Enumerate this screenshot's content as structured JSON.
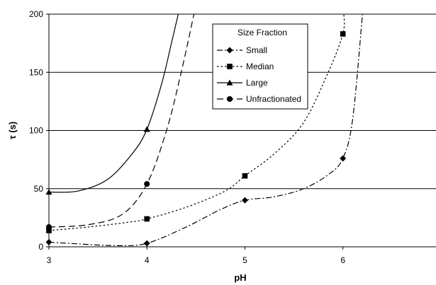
{
  "chart_data": {
    "type": "line",
    "xlabel": "pH",
    "ylabel": "τ (s)",
    "xlim": [
      3,
      6.95
    ],
    "ylim": [
      0,
      200
    ],
    "x_ticks": [
      "3",
      "4",
      "5",
      "6"
    ],
    "y_ticks": [
      "0",
      "50",
      "100",
      "150",
      "200"
    ],
    "grid": "horizontal",
    "legend": {
      "title": "Size Fraction",
      "placement": "top-center"
    },
    "series": [
      {
        "name": "Small",
        "marker": "diamond",
        "dash": "dash-dot",
        "points": [
          [
            3,
            4
          ],
          [
            4,
            3
          ],
          [
            5,
            40
          ],
          [
            6,
            76
          ]
        ],
        "curve": [
          [
            3,
            4
          ],
          [
            3.3,
            2.5
          ],
          [
            3.7,
            1
          ],
          [
            4,
            3
          ],
          [
            4.4,
            17
          ],
          [
            4.75,
            32
          ],
          [
            5,
            40
          ],
          [
            5.3,
            43
          ],
          [
            5.6,
            50
          ],
          [
            5.85,
            62
          ],
          [
            6,
            76
          ],
          [
            6.1,
            110
          ],
          [
            6.2,
            200
          ]
        ]
      },
      {
        "name": "Median",
        "marker": "square",
        "dash": "dotted",
        "points": [
          [
            3,
            14
          ],
          [
            4,
            24
          ],
          [
            5,
            61
          ],
          [
            6,
            183
          ]
        ],
        "curve": [
          [
            3,
            14
          ],
          [
            3.4,
            17
          ],
          [
            3.8,
            21
          ],
          [
            4,
            24
          ],
          [
            4.4,
            34
          ],
          [
            4.8,
            48
          ],
          [
            5,
            61
          ],
          [
            5.3,
            80
          ],
          [
            5.6,
            107
          ],
          [
            5.85,
            150
          ],
          [
            6,
            183
          ],
          [
            6.01,
            200
          ]
        ]
      },
      {
        "name": "Large",
        "marker": "triangle",
        "dash": "solid",
        "points": [
          [
            3,
            47
          ],
          [
            4,
            101
          ]
        ],
        "curve": [
          [
            3,
            47
          ],
          [
            3.3,
            48
          ],
          [
            3.6,
            58
          ],
          [
            3.85,
            80
          ],
          [
            4,
            101
          ],
          [
            4.15,
            140
          ],
          [
            4.25,
            175
          ],
          [
            4.32,
            200
          ]
        ]
      },
      {
        "name": "Unfractionated",
        "marker": "circle",
        "dash": "dashed",
        "points": [
          [
            3,
            17
          ],
          [
            4,
            54
          ]
        ],
        "curve": [
          [
            3,
            17
          ],
          [
            3.4,
            19
          ],
          [
            3.75,
            28
          ],
          [
            4,
            54
          ],
          [
            4.2,
            100
          ],
          [
            4.35,
            150
          ],
          [
            4.48,
            200
          ]
        ]
      }
    ]
  }
}
